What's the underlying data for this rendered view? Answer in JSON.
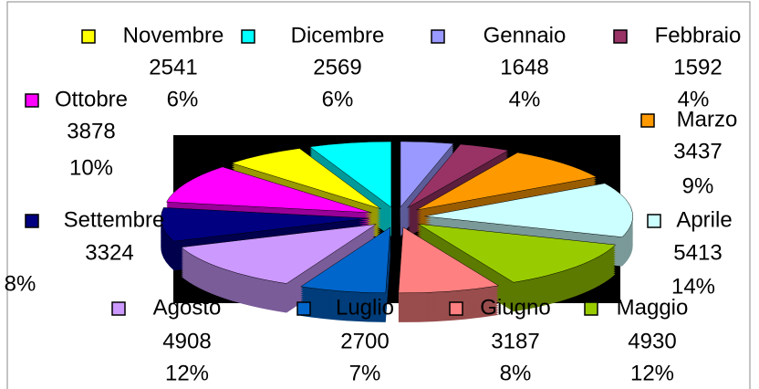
{
  "chart_data": {
    "type": "pie",
    "categories": [
      "Gennaio",
      "Febbraio",
      "Marzo",
      "Aprile",
      "Maggio",
      "Giugno",
      "Luglio",
      "Agosto",
      "Settembre",
      "Ottobre",
      "Novembre",
      "Dicembre"
    ],
    "values": [
      1648,
      1592,
      3437,
      5413,
      4930,
      3187,
      2700,
      4908,
      3324,
      3878,
      2541,
      2569
    ],
    "percent_labels": [
      "4%",
      "4%",
      "9%",
      "14%",
      "12%",
      "8%",
      "7%",
      "12%",
      "8%",
      "10%",
      "6%",
      "6%"
    ],
    "colors": [
      "#9999ff",
      "#993366",
      "#ff9900",
      "#ccffff",
      "#99cc00",
      "#ff8080",
      "#0066cc",
      "#cc99ff",
      "#000080",
      "#ff00ff",
      "#ffff00",
      "#00ffff"
    ]
  }
}
